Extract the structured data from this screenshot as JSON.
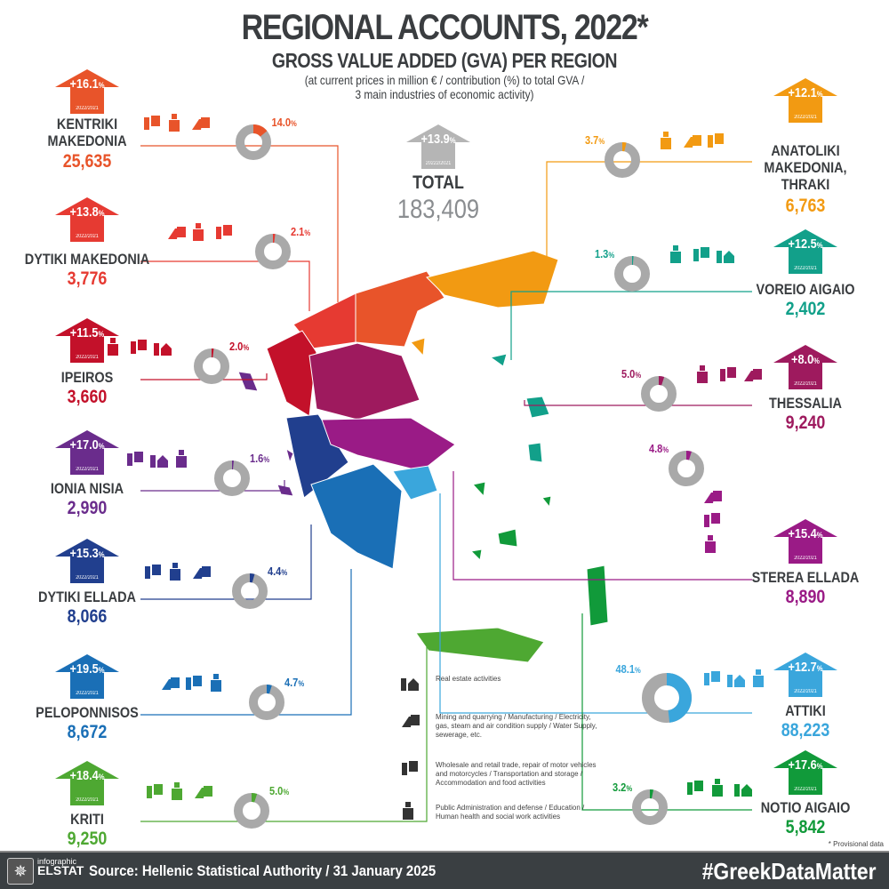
{
  "header": {
    "title": "REGIONAL ACCOUNTS, 2022*",
    "subtitle": "GROSS VALUE ADDED (GVA) PER REGION",
    "note_line1": "(at current prices in million € / contribution (%) to total GVA /",
    "note_line2": "3 main industries of economic activity)"
  },
  "total": {
    "label": "TOTAL",
    "value": "183,409",
    "growth": "+13.9",
    "growth_unit": "%",
    "period": "20222/2021",
    "color": "#b5b5b5"
  },
  "chart_data": {
    "type": "donut",
    "title": "GROSS VALUE ADDED (GVA) PER REGION",
    "unit": "million €",
    "regions": [
      {
        "name": "KENTRIKI MAKEDONIA",
        "gva": "25,635",
        "share": 14.0,
        "growth": "+16.1",
        "period": "2022/2021",
        "color": "#e8542a",
        "industries": [
          "trade",
          "public",
          "mining"
        ]
      },
      {
        "name": "DYTIKI MAKEDONIA",
        "gva": "3,776",
        "share": 2.1,
        "growth": "+13.8",
        "period": "2022/2021",
        "color": "#e63a32",
        "industries": [
          "mining",
          "public",
          "trade"
        ]
      },
      {
        "name": "IPEIROS",
        "gva": "3,660",
        "share": 2.0,
        "growth": "+11.5",
        "period": "2022/2021",
        "color": "#c3112a",
        "industries": [
          "public",
          "trade",
          "realestate"
        ]
      },
      {
        "name": "IONIA NISIA",
        "gva": "2,990",
        "share": 1.6,
        "growth": "+17.0",
        "period": "2022/2021",
        "color": "#6a2c8c",
        "industries": [
          "trade",
          "realestate",
          "public"
        ]
      },
      {
        "name": "DYTIKI ELLADA",
        "gva": "8,066",
        "share": 4.4,
        "growth": "+15.3",
        "period": "2022/2021",
        "color": "#213f8e",
        "industries": [
          "trade",
          "public",
          "mining"
        ]
      },
      {
        "name": "PELOPONNISOS",
        "gva": "8,672",
        "share": 4.7,
        "growth": "+19.5",
        "period": "2022/2021",
        "color": "#1a6fb6",
        "industries": [
          "mining",
          "trade",
          "public"
        ]
      },
      {
        "name": "KRITI",
        "gva": "9,250",
        "share": 5.0,
        "growth": "+18.4",
        "period": "2022/2021",
        "color": "#4ea832",
        "industries": [
          "trade",
          "public",
          "mining"
        ]
      },
      {
        "name": "ANATOLIKI MAKEDONIA, THRAKI",
        "gva": "6,763",
        "share": 3.7,
        "growth": "+12.1",
        "period": "2022/2021",
        "color": "#f29a12",
        "industries": [
          "public",
          "mining",
          "trade"
        ]
      },
      {
        "name": "VOREIO AIGAIO",
        "gva": "2,402",
        "share": 1.3,
        "growth": "+12.5",
        "period": "2022/2021",
        "color": "#12a08a",
        "industries": [
          "public",
          "trade",
          "realestate"
        ]
      },
      {
        "name": "THESSALIA",
        "gva": "9,240",
        "share": 5.0,
        "growth": "+8.0",
        "period": "2022/2021",
        "color": "#9e1a5e",
        "industries": [
          "public",
          "trade",
          "mining"
        ]
      },
      {
        "name": "STEREA ELLADA",
        "gva": "8,890",
        "share": 4.8,
        "growth": "+15.4",
        "period": "2022/2021",
        "color": "#9a1b86",
        "industries": [
          "mining",
          "trade",
          "public"
        ]
      },
      {
        "name": "ATTIKI",
        "gva": "88,223",
        "share": 48.1,
        "growth": "+12.7",
        "period": "2022/2021",
        "color": "#3aa6dc",
        "industries": [
          "trade",
          "realestate",
          "public"
        ]
      },
      {
        "name": "NOTIO AIGAIO",
        "gva": "5,842",
        "share": 3.2,
        "growth": "+17.6",
        "period": "2022/2021",
        "color": "#119a3a",
        "industries": [
          "trade",
          "public",
          "realestate"
        ]
      }
    ]
  },
  "legend": [
    {
      "icon": "realestate",
      "text": "Real estate activities"
    },
    {
      "icon": "mining",
      "text": "Mining and quarrying / Manufacturing / Electricity, gas, steam and air condition supply / Water Supply, sewerage, etc."
    },
    {
      "icon": "trade",
      "text": "Wholesale and retail trade, repair of motor vehicles and motorcycles / Transportation and storage / Accommodation and food activities"
    },
    {
      "icon": "public",
      "text": "Public Administration and defense / Education / Human health and social work activities"
    }
  ],
  "footnote": "* Provisional data",
  "footer": {
    "logo_small": "infographic",
    "logo_big": "ELSTAT",
    "source": "Source: Hellenic Statistical Authority / 31 January 2025",
    "hashtag": "#GreekDataMatter"
  },
  "donut_rest_color": "#a9a9a9"
}
